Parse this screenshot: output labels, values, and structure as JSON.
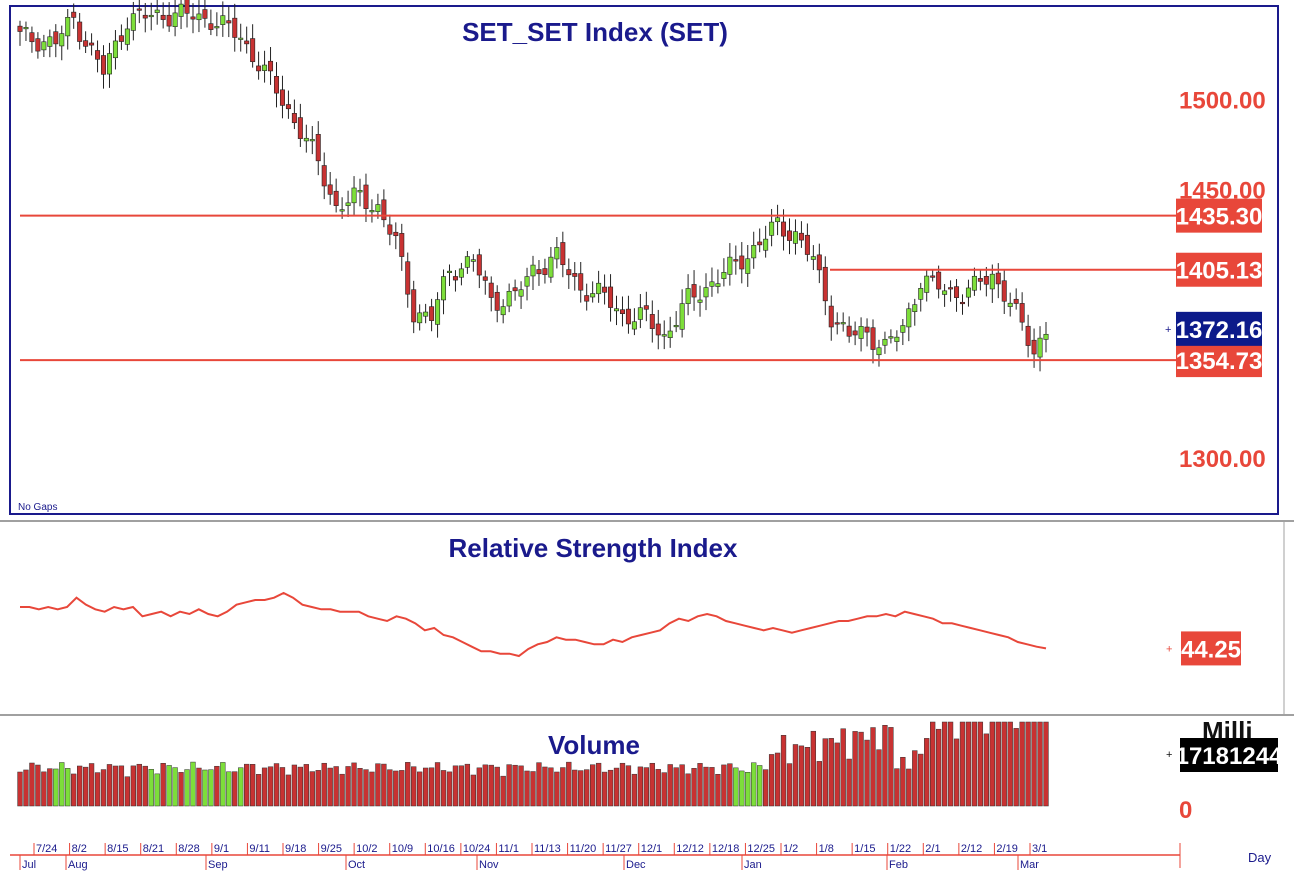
{
  "panels": {
    "price_title": "SET_SET  Index  (SET)",
    "rsi_title": "Relative  Strength  Index",
    "volume_title": "Volume",
    "no_gaps_label": "No  Gaps",
    "day_label": "Day",
    "volume_unit": "Milli",
    "volume_zero": "0",
    "volume_last": "17181244",
    "rsi_last": "44.25"
  },
  "colors": {
    "up": "#7dde3a",
    "down": "#c83232",
    "line": "#e8473a",
    "navy": "#1a1a8c",
    "current_tag": "#0c1a8a"
  },
  "chart_data": [
    {
      "type": "candlestick",
      "title": "SET_SET  Index  (SET)",
      "ylim": [
        1270,
        1550
      ],
      "yticks": [
        {
          "value": 1500,
          "label": "1500.00"
        },
        {
          "value": 1450,
          "label": "1450.00"
        },
        {
          "value": 1300,
          "label": "1300.00"
        }
      ],
      "levels": [
        {
          "value": 1435.3,
          "label": "1435.30",
          "from": 0
        },
        {
          "value": 1405.13,
          "label": "1405.13",
          "from": 0.5
        }
      ],
      "support": {
        "value": 1354.73,
        "label": "1354.73"
      },
      "last": {
        "value": 1372.16,
        "label": "1372.16"
      }
    },
    {
      "type": "line",
      "title": "Relative  Strength  Index",
      "ylim": [
        20,
        80
      ],
      "values": [
        62,
        62,
        61,
        62,
        61,
        62,
        66,
        63,
        61,
        60,
        62,
        61,
        62,
        58,
        59,
        60,
        58,
        60,
        59,
        61,
        59,
        58,
        60,
        63,
        64,
        65,
        65,
        66,
        68,
        66,
        63,
        62,
        61,
        61,
        60,
        60,
        60,
        58,
        57,
        56,
        58,
        57,
        55,
        52,
        53,
        50,
        49,
        47,
        45,
        43,
        43,
        42,
        42,
        41,
        44,
        46,
        47,
        49,
        48,
        48,
        47,
        46,
        46,
        48,
        47,
        49,
        50,
        51,
        52,
        55,
        57,
        56,
        58,
        59,
        58,
        56,
        55,
        54,
        53,
        52,
        53,
        52,
        51,
        52,
        53,
        54,
        55,
        56,
        56,
        57,
        58,
        58,
        59,
        58,
        60,
        59,
        58,
        57,
        55,
        55,
        54,
        53,
        52,
        51,
        50,
        49,
        47,
        46,
        45,
        44.25
      ]
    },
    {
      "type": "bar",
      "title": "Volume",
      "xlabel": "Day",
      "categories": [
        "7/24",
        "8/2",
        "8/15",
        "8/21",
        "8/28",
        "9/1",
        "9/11",
        "9/18",
        "9/25",
        "10/2",
        "10/9",
        "10/16",
        "10/24",
        "11/1",
        "11/13",
        "11/20",
        "11/27",
        "12/1",
        "12/12",
        "12/18",
        "12/25",
        "1/2",
        "1/8",
        "1/15",
        "1/22",
        "2/1",
        "2/12",
        "2/19",
        "3/1"
      ],
      "months": [
        "Jul",
        "Aug",
        "Sep",
        "Oct",
        "Nov",
        "Dec",
        "Jan",
        "Feb",
        "Mar"
      ],
      "last": 17181244
    }
  ]
}
